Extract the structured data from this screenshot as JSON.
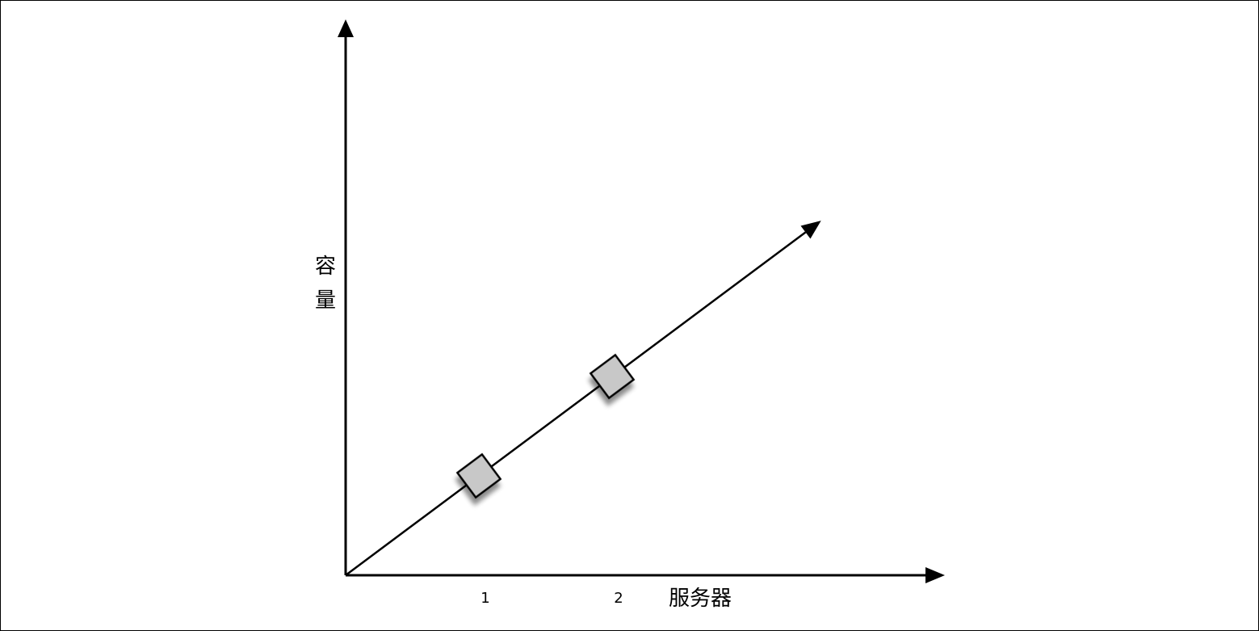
{
  "chart_data": {
    "type": "line",
    "xlabel": "服务器",
    "ylabel": "容量",
    "x_ticks": [
      "1",
      "2"
    ],
    "series": [
      {
        "points": [
          {
            "x": 0,
            "y": 0
          },
          {
            "x": 3.5,
            "y": 3.5
          }
        ],
        "markers": [
          {
            "x": 1,
            "y": 1
          },
          {
            "x": 2,
            "y": 2
          }
        ]
      }
    ],
    "xlim": [
      0,
      3.5
    ],
    "ylim": [
      0,
      3.5
    ],
    "grid": false,
    "colors": {
      "line": "#000000",
      "marker_fill": "#c8c8c8",
      "marker_stroke": "#000000"
    }
  }
}
